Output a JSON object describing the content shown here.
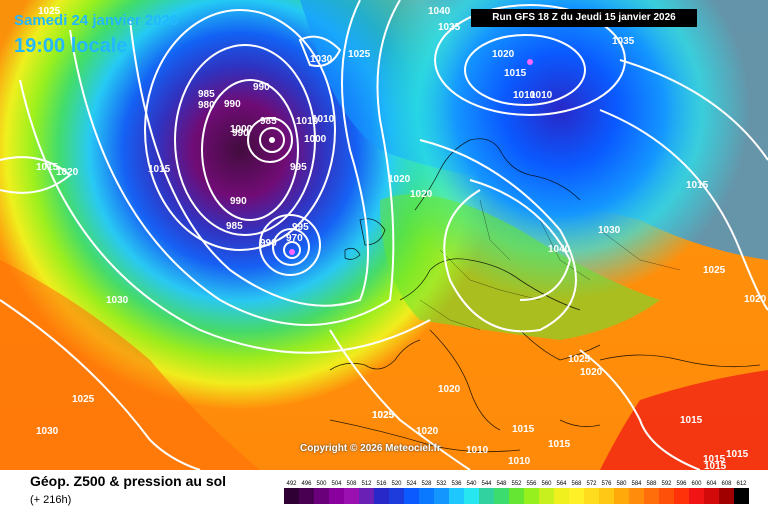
{
  "header": {
    "date": "Samedi 24 janvier 2026",
    "time": "19:00 locale",
    "run": "Run GFS 18 Z du Jeudi 15 janvier 2026"
  },
  "footer": {
    "title": "Géop. Z500 & pression au sol",
    "subtitle": "(+ 216h)"
  },
  "copyright": "Copyright © 2026 Meteociel.fr",
  "isobar_labels": [
    "1025",
    "1040",
    "1035",
    "1020",
    "1015",
    "1010",
    "1010",
    "1035",
    "990",
    "985",
    "980",
    "990",
    "985",
    "1000",
    "1000",
    "1010",
    "1015",
    "1010",
    "990",
    "995",
    "990",
    "985",
    "970",
    "990",
    "995",
    "1030",
    "1025",
    "1020",
    "1015",
    "1020",
    "1020",
    "1030",
    "1015",
    "1040",
    "1030",
    "1025",
    "1020",
    "1025",
    "1020",
    "1025",
    "1030",
    "1025",
    "1020",
    "1020",
    "1025",
    "1015",
    "1015",
    "1015",
    "1010",
    "1010",
    "1015",
    "1015",
    "1015"
  ],
  "scale": {
    "values": [
      492,
      496,
      500,
      504,
      508,
      512,
      516,
      520,
      524,
      528,
      532,
      536,
      540,
      544,
      548,
      552,
      556,
      560,
      564,
      568,
      572,
      576,
      580,
      584,
      588,
      592,
      596,
      600,
      604,
      608,
      612
    ],
    "colors": [
      "#2e0033",
      "#4a0052",
      "#6a007a",
      "#8a009e",
      "#9a10b0",
      "#6a1fb5",
      "#2828c8",
      "#1e3cdc",
      "#0a5aff",
      "#0a78ff",
      "#1496ff",
      "#1ec8ff",
      "#28e6f0",
      "#32d2a0",
      "#3cdc6e",
      "#64e632",
      "#96f01e",
      "#c8f01e",
      "#f0f01e",
      "#fff028",
      "#ffdc1e",
      "#ffc814",
      "#ffaa0a",
      "#ff8c0a",
      "#ff6e0a",
      "#ff500a",
      "#ff320a",
      "#f01414",
      "#d20a0a",
      "#a00000",
      "#000000"
    ]
  }
}
